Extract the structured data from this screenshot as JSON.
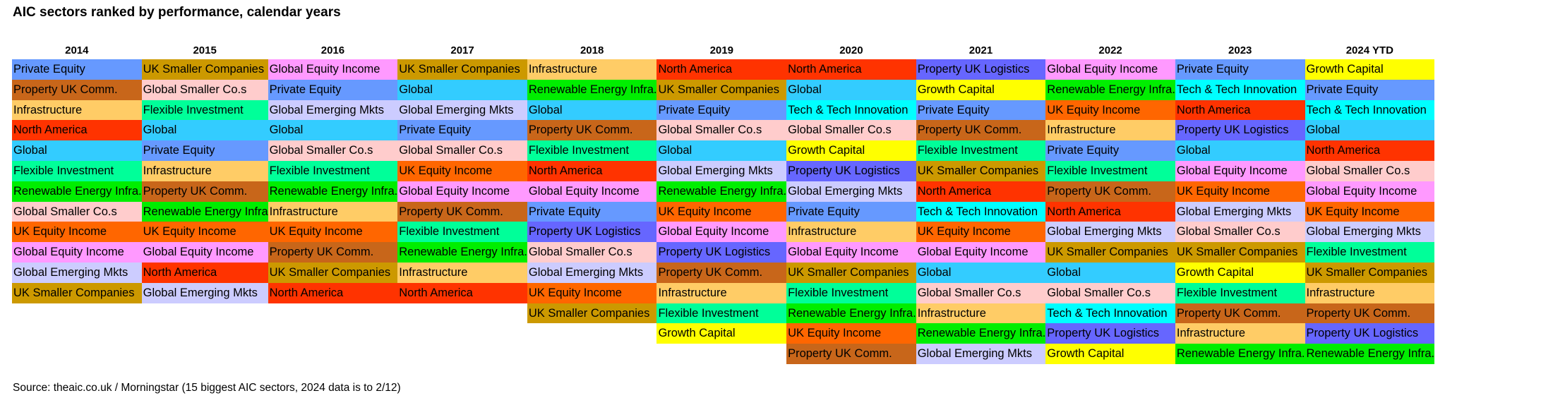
{
  "title": "AIC sectors ranked by performance, calendar years",
  "source": "Source: theaic.co.uk / Morningstar (15 biggest AIC sectors, 2024 data is to 2/12)",
  "colors": {
    "Private Equity": "#6699ff",
    "Property UK Comm.": "#c8661a",
    "Infrastructure": "#ffcc66",
    "North America": "#ff3300",
    "Global": "#33ccff",
    "Flexible Investment": "#00ff99",
    "Renewable Energy Infra.": "#00ee00",
    "Renewable Energy Infra": "#00ee00",
    "Global Smaller Co.s": "#ffcccc",
    "UK Equity Income": "#ff6600",
    "Global Equity Income": "#ff99ff",
    "Global Emerging Mkts": "#ccccff",
    "UK Smaller Companies": "#cc9900",
    "Property UK Logistics": "#6666ff",
    "Tech & Tech Innovation": "#00ffff",
    "Growth Capital": "#ffff00"
  },
  "chart_data": {
    "type": "table",
    "columns": [
      {
        "year": "2014",
        "sectors": [
          "Private Equity",
          "Property UK Comm.",
          "Infrastructure",
          "North America",
          "Global",
          "Flexible Investment",
          "Renewable Energy Infra.",
          "Global Smaller Co.s",
          "UK Equity Income",
          "Global Equity Income",
          "Global Emerging Mkts",
          "UK Smaller Companies"
        ]
      },
      {
        "year": "2015",
        "sectors": [
          "UK Smaller Companies",
          "Global Smaller Co.s",
          "Flexible Investment",
          "Global",
          "Private Equity",
          "Infrastructure",
          "Property UK Comm.",
          "Renewable Energy Infra",
          "UK Equity Income",
          "Global Equity Income",
          "North America",
          "Global Emerging Mkts"
        ]
      },
      {
        "year": "2016",
        "sectors": [
          "Global Equity Income",
          "Private Equity",
          "Global Emerging Mkts",
          "Global",
          "Global Smaller Co.s",
          "Flexible Investment",
          "Renewable Energy Infra.",
          "Infrastructure",
          "UK Equity Income",
          "Property UK Comm.",
          "UK Smaller Companies",
          "North America"
        ]
      },
      {
        "year": "2017",
        "sectors": [
          "UK Smaller Companies",
          "Global",
          "Global Emerging Mkts",
          "Private Equity",
          "Global Smaller Co.s",
          "UK Equity Income",
          "Global Equity Income",
          "Property UK Comm.",
          "Flexible Investment",
          "Renewable Energy Infra.",
          "Infrastructure",
          "North America"
        ]
      },
      {
        "year": "2018",
        "sectors": [
          "Infrastructure",
          "Renewable Energy Infra.",
          "Global",
          "Property UK Comm.",
          "Flexible Investment",
          "North America",
          "Global Equity Income",
          "Private Equity",
          "Property UK Logistics",
          "Global Smaller Co.s",
          "Global Emerging Mkts",
          "UK Equity Income",
          "UK Smaller Companies"
        ]
      },
      {
        "year": "2019",
        "sectors": [
          "North America",
          "UK Smaller Companies",
          "Private Equity",
          "Global Smaller Co.s",
          "Global",
          "Global Emerging Mkts",
          "Renewable Energy Infra.",
          "UK Equity Income",
          "Global Equity Income",
          "Property UK Logistics",
          "Property UK Comm.",
          "Infrastructure",
          "Flexible Investment",
          "Growth Capital"
        ]
      },
      {
        "year": "2020",
        "sectors": [
          "North America",
          "Global",
          "Tech & Tech Innovation",
          "Global Smaller Co.s",
          "Growth Capital",
          "Property UK Logistics",
          "Global Emerging Mkts",
          "Private Equity",
          "Infrastructure",
          "Global Equity Income",
          "UK Smaller Companies",
          "Flexible Investment",
          "Renewable Energy Infra.",
          "UK Equity Income",
          "Property UK Comm."
        ]
      },
      {
        "year": "2021",
        "sectors": [
          "Property UK Logistics",
          "Growth Capital",
          "Private Equity",
          "Property UK Comm.",
          "Flexible Investment",
          "UK Smaller Companies",
          "North America",
          "Tech & Tech Innovation",
          "UK Equity Income",
          "Global Equity Income",
          "Global",
          "Global Smaller Co.s",
          "Infrastructure",
          "Renewable Energy Infra.",
          "Global Emerging Mkts"
        ]
      },
      {
        "year": "2022",
        "sectors": [
          "Global Equity Income",
          "Renewable Energy Infra.",
          "UK Equity Income",
          "Infrastructure",
          "Private Equity",
          "Flexible Investment",
          "Property UK Comm.",
          "North America",
          "Global Emerging Mkts",
          "UK Smaller Companies",
          "Global",
          "Global Smaller Co.s",
          "Tech & Tech Innovation",
          "Property UK Logistics",
          "Growth Capital"
        ]
      },
      {
        "year": "2023",
        "sectors": [
          "Private Equity",
          "Tech & Tech Innovation",
          "North America",
          "Property UK Logistics",
          "Global",
          "Global Equity Income",
          "UK Equity Income",
          "Global Emerging Mkts",
          "Global Smaller Co.s",
          "UK Smaller Companies",
          "Growth Capital",
          "Flexible Investment",
          "Property UK Comm.",
          "Infrastructure",
          "Renewable Energy Infra."
        ]
      },
      {
        "year": "2024 YTD",
        "sectors": [
          "Growth Capital",
          "Private Equity",
          "Tech & Tech Innovation",
          "Global",
          "North America",
          "Global Smaller Co.s",
          "Global Equity Income",
          "UK Equity Income",
          "Global Emerging Mkts",
          "Flexible Investment",
          "UK Smaller Companies",
          "Infrastructure",
          "Property UK Comm.",
          "Property UK Logistics",
          "Renewable Energy Infra."
        ]
      }
    ]
  }
}
